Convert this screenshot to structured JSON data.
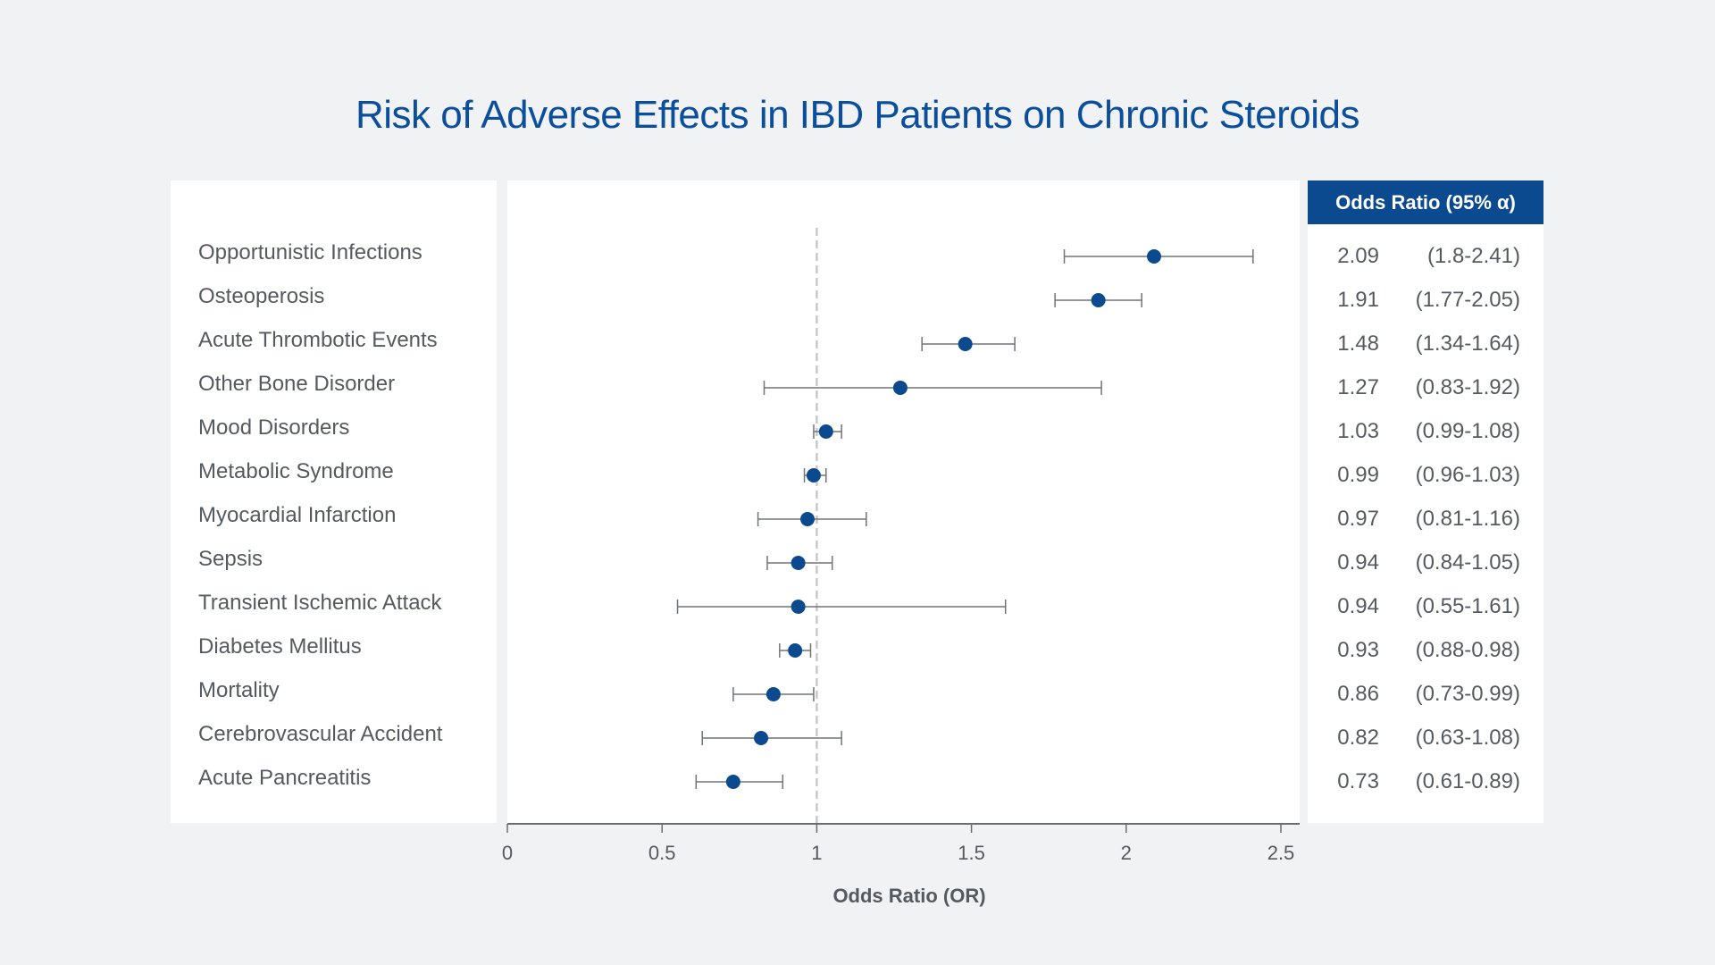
{
  "chart_data": {
    "type": "forest",
    "title": "Risk of Adverse Effects in IBD Patients on Chronic Steroids",
    "xlabel": "Odds Ratio (OR)",
    "xlim": [
      0,
      2.55
    ],
    "xticks": [
      0,
      0.5,
      1,
      1.5,
      2,
      2.5
    ],
    "xtick_labels": [
      "0",
      "0.5",
      "1",
      "1.5",
      "2",
      "2.5"
    ],
    "reference_line": 1,
    "table_header": "Odds Ratio (95% α)",
    "marker_color": "#0b4a8f",
    "rows": [
      {
        "label": "Opportunistic Infections",
        "or": 2.09,
        "lo": 1.8,
        "hi": 2.41,
        "or_text": "2.09",
        "ci_text": "(1.8-2.41)"
      },
      {
        "label": "Osteoperosis",
        "or": 1.91,
        "lo": 1.77,
        "hi": 2.05,
        "or_text": "1.91",
        "ci_text": "(1.77-2.05)"
      },
      {
        "label": "Acute Thrombotic Events",
        "or": 1.48,
        "lo": 1.34,
        "hi": 1.64,
        "or_text": "1.48",
        "ci_text": "(1.34-1.64)"
      },
      {
        "label": "Other Bone Disorder",
        "or": 1.27,
        "lo": 0.83,
        "hi": 1.92,
        "or_text": "1.27",
        "ci_text": "(0.83-1.92)"
      },
      {
        "label": "Mood Disorders",
        "or": 1.03,
        "lo": 0.99,
        "hi": 1.08,
        "or_text": "1.03",
        "ci_text": "(0.99-1.08)"
      },
      {
        "label": "Metabolic Syndrome",
        "or": 0.99,
        "lo": 0.96,
        "hi": 1.03,
        "or_text": "0.99",
        "ci_text": "(0.96-1.03)"
      },
      {
        "label": "Myocardial Infarction",
        "or": 0.97,
        "lo": 0.81,
        "hi": 1.16,
        "or_text": "0.97",
        "ci_text": "(0.81-1.16)"
      },
      {
        "label": "Sepsis",
        "or": 0.94,
        "lo": 0.84,
        "hi": 1.05,
        "or_text": "0.94",
        "ci_text": "(0.84-1.05)"
      },
      {
        "label": "Transient Ischemic Attack",
        "or": 0.94,
        "lo": 0.55,
        "hi": 1.61,
        "or_text": "0.94",
        "ci_text": "(0.55-1.61)"
      },
      {
        "label": "Diabetes Mellitus",
        "or": 0.93,
        "lo": 0.88,
        "hi": 0.98,
        "or_text": "0.93",
        "ci_text": "(0.88-0.98)"
      },
      {
        "label": "Mortality",
        "or": 0.86,
        "lo": 0.73,
        "hi": 0.99,
        "or_text": "0.86",
        "ci_text": "(0.73-0.99)"
      },
      {
        "label": "Cerebrovascular Accident",
        "or": 0.82,
        "lo": 0.63,
        "hi": 1.08,
        "or_text": "0.82",
        "ci_text": "(0.63-1.08)"
      },
      {
        "label": "Acute Pancreatitis",
        "or": 0.73,
        "lo": 0.61,
        "hi": 0.89,
        "or_text": "0.73",
        "ci_text": "(0.61-0.89)"
      }
    ]
  }
}
